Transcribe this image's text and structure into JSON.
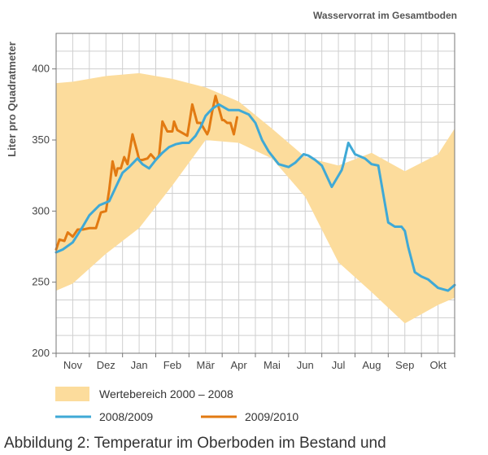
{
  "chart_data": {
    "type": "line",
    "title": "Wasservorrat im Gesamtboden",
    "ylabel": "Liter pro Quadratmeter",
    "xlabel": "",
    "ylim": [
      200,
      425
    ],
    "yticks": [
      200,
      250,
      300,
      350,
      400
    ],
    "months": [
      "Nov",
      "Dez",
      "Jan",
      "Feb",
      "Mär",
      "Apr",
      "Mai",
      "Jun",
      "Jul",
      "Aug",
      "Sep",
      "Okt"
    ],
    "grid": true,
    "legend_position": "bottom",
    "band": {
      "name": "Wertebereich 2000 – 2008",
      "color": "#FCDC9C",
      "x": [
        0,
        0.5,
        1.5,
        2.5,
        3.5,
        4.5,
        5.5,
        6.5,
        7.5,
        8.5,
        9.5,
        10.5,
        11.5,
        12.0
      ],
      "upper": [
        390,
        391,
        395,
        397,
        393,
        387,
        377,
        358,
        338,
        332,
        341,
        328,
        340,
        358
      ],
      "lower": [
        244,
        249,
        270,
        288,
        318,
        350,
        348,
        337,
        310,
        264,
        243,
        221,
        234,
        239
      ]
    },
    "series": [
      {
        "name": "2008/2009",
        "color": "#3FA9D6",
        "x": [
          0,
          0.2,
          0.5,
          0.8,
          1.0,
          1.3,
          1.6,
          1.8,
          2.0,
          2.2,
          2.45,
          2.6,
          2.8,
          3.0,
          3.2,
          3.4,
          3.6,
          3.8,
          4.0,
          4.2,
          4.35,
          4.5,
          4.7,
          4.9,
          5.2,
          5.5,
          5.8,
          6.0,
          6.2,
          6.4,
          6.7,
          7.0,
          7.2,
          7.45,
          7.6,
          7.8,
          8.0,
          8.3,
          8.5,
          8.6,
          8.65,
          8.8,
          9.0,
          9.3,
          9.5,
          9.7,
          10.0,
          10.2,
          10.4,
          10.5,
          10.6,
          10.8,
          11.0,
          11.2,
          11.5,
          11.8,
          12.0
        ],
        "y": [
          271,
          273,
          278,
          289,
          297,
          304,
          307,
          317,
          327,
          331,
          337,
          333,
          330,
          336,
          341,
          345,
          347,
          348,
          348,
          353,
          359,
          367,
          372,
          375,
          371,
          371,
          368,
          362,
          350,
          342,
          333,
          331,
          334,
          340,
          339,
          336,
          332,
          317,
          325,
          329,
          333,
          348,
          340,
          337,
          333,
          332,
          292,
          289,
          289,
          286,
          275,
          257,
          254,
          252,
          246,
          244,
          248
        ]
      },
      {
        "name": "2009/2010",
        "color": "#E27A12",
        "x": [
          0,
          0.1,
          0.25,
          0.35,
          0.5,
          0.65,
          0.8,
          1.0,
          1.2,
          1.35,
          1.5,
          1.6,
          1.7,
          1.8,
          1.85,
          1.95,
          2.05,
          2.15,
          2.3,
          2.45,
          2.5,
          2.6,
          2.75,
          2.85,
          3.0,
          3.1,
          3.2,
          3.35,
          3.5,
          3.55,
          3.65,
          3.8,
          3.95,
          4.0,
          4.1,
          4.25,
          4.35,
          4.45,
          4.55,
          4.6,
          4.7,
          4.8,
          5.0,
          5.05,
          5.15,
          5.25,
          5.35,
          5.45
        ],
        "y": [
          273,
          280,
          279,
          285,
          282,
          287,
          287,
          288,
          288,
          299,
          300,
          315,
          335,
          325,
          330,
          330,
          338,
          333,
          354,
          341,
          336,
          336,
          337,
          340,
          336,
          339,
          363,
          356,
          356,
          363,
          357,
          355,
          353,
          360,
          375,
          362,
          362,
          358,
          354,
          357,
          370,
          381,
          364,
          364,
          362,
          362,
          354,
          366
        ]
      }
    ]
  },
  "caption": "Abbildung 2: Temperatur im Oberboden im Bestand und"
}
